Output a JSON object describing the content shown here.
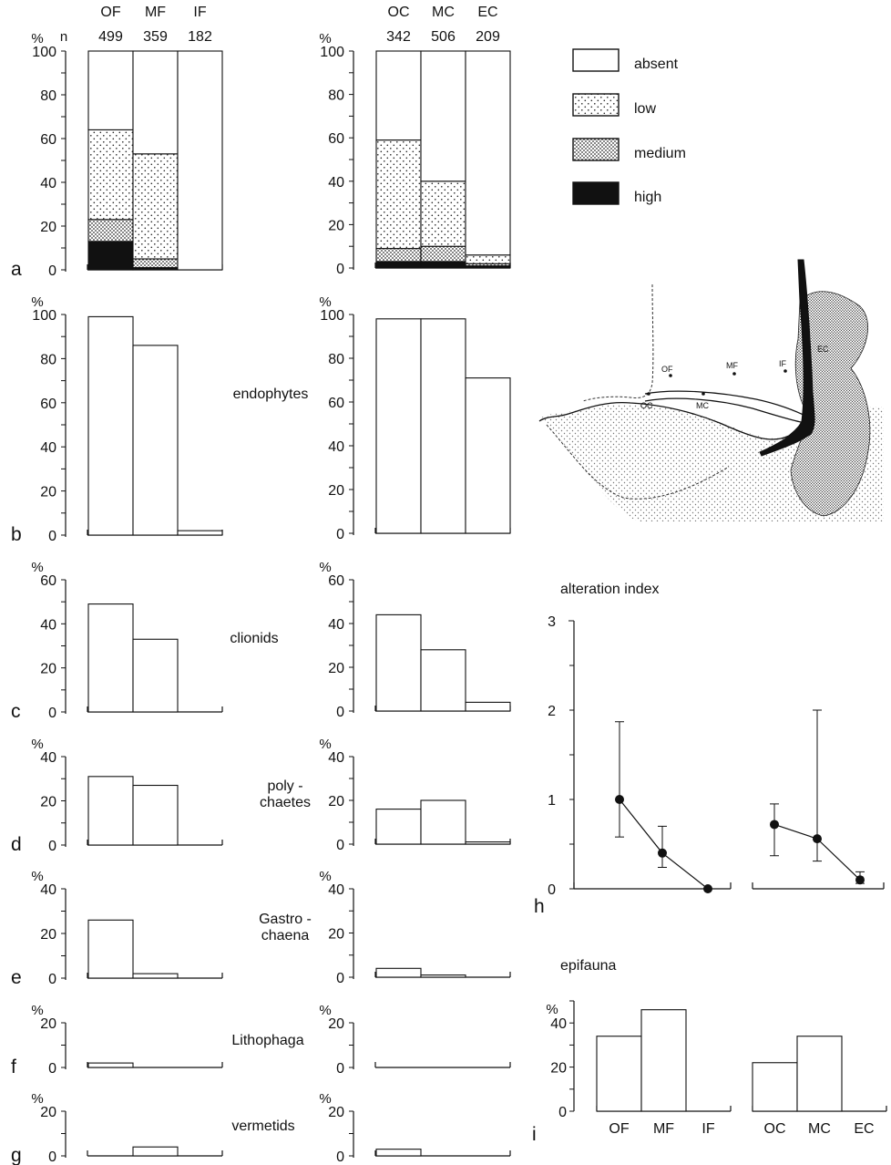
{
  "legend": {
    "items": [
      {
        "key": "absent",
        "label": "absent"
      },
      {
        "key": "low",
        "label": "low"
      },
      {
        "key": "medium",
        "label": "medium"
      },
      {
        "key": "high",
        "label": "high"
      }
    ]
  },
  "chart_data": [
    {
      "id": "a",
      "type": "bar",
      "stacked": true,
      "panel_label": "a",
      "ylabel": "%",
      "n_label": "n",
      "categories": [
        "OF",
        "MF",
        "IF"
      ],
      "n": [
        "499",
        "359",
        "182"
      ],
      "series": [
        {
          "name": "high",
          "values": [
            13,
            1,
            0
          ]
        },
        {
          "name": "medium",
          "values": [
            10,
            4,
            0
          ]
        },
        {
          "name": "low",
          "values": [
            41,
            48,
            0
          ]
        },
        {
          "name": "absent",
          "values": [
            36,
            47,
            100
          ]
        }
      ],
      "ylim": [
        0,
        100
      ],
      "yticks": [
        0,
        20,
        40,
        60,
        80,
        100
      ]
    },
    {
      "id": "a2",
      "type": "bar",
      "stacked": true,
      "ylabel": "%",
      "categories": [
        "OC",
        "MC",
        "EC"
      ],
      "n": [
        "342",
        "506",
        "209"
      ],
      "series": [
        {
          "name": "high",
          "values": [
            3,
            3,
            1
          ]
        },
        {
          "name": "medium",
          "values": [
            6,
            7,
            1
          ]
        },
        {
          "name": "low",
          "values": [
            50,
            30,
            4
          ]
        },
        {
          "name": "absent",
          "values": [
            41,
            60,
            94
          ]
        }
      ],
      "ylim": [
        0,
        100
      ],
      "yticks": [
        0,
        20,
        40,
        60,
        80,
        100
      ]
    },
    {
      "id": "b",
      "type": "bar",
      "panel_label": "b",
      "ylabel": "%",
      "title": "endophytes",
      "categories": [
        "OF",
        "MF",
        "IF"
      ],
      "values": [
        99,
        86,
        2
      ],
      "ylim": [
        0,
        100
      ],
      "yticks": [
        0,
        20,
        40,
        60,
        80,
        100
      ]
    },
    {
      "id": "b2",
      "type": "bar",
      "ylabel": "%",
      "categories": [
        "OC",
        "MC",
        "EC"
      ],
      "values": [
        98,
        98,
        71
      ],
      "ylim": [
        0,
        100
      ],
      "yticks": [
        0,
        20,
        40,
        60,
        80,
        100
      ]
    },
    {
      "id": "c",
      "type": "bar",
      "panel_label": "c",
      "ylabel": "%",
      "title": "clionids",
      "categories": [
        "OF",
        "MF",
        "IF"
      ],
      "values": [
        49,
        33,
        0
      ],
      "ylim": [
        0,
        60
      ],
      "yticks": [
        0,
        20,
        40,
        60
      ]
    },
    {
      "id": "c2",
      "type": "bar",
      "ylabel": "%",
      "categories": [
        "OC",
        "MC",
        "EC"
      ],
      "values": [
        44,
        28,
        4
      ],
      "ylim": [
        0,
        60
      ],
      "yticks": [
        0,
        20,
        40,
        60
      ]
    },
    {
      "id": "d",
      "type": "bar",
      "panel_label": "d",
      "ylabel": "%",
      "title": "poly -\nchaetes",
      "categories": [
        "OF",
        "MF",
        "IF"
      ],
      "values": [
        31,
        27,
        0
      ],
      "ylim": [
        0,
        40
      ],
      "yticks": [
        0,
        20,
        40
      ]
    },
    {
      "id": "d2",
      "type": "bar",
      "ylabel": "%",
      "categories": [
        "OC",
        "MC",
        "EC"
      ],
      "values": [
        16,
        20,
        1
      ],
      "ylim": [
        0,
        40
      ],
      "yticks": [
        0,
        20,
        40
      ]
    },
    {
      "id": "e",
      "type": "bar",
      "panel_label": "e",
      "ylabel": "%",
      "title": "Gastro -\nchaena",
      "categories": [
        "OF",
        "MF",
        "IF"
      ],
      "values": [
        26,
        2,
        0
      ],
      "ylim": [
        0,
        40
      ],
      "yticks": [
        0,
        20,
        40
      ]
    },
    {
      "id": "e2",
      "type": "bar",
      "ylabel": "%",
      "categories": [
        "OC",
        "MC",
        "EC"
      ],
      "values": [
        4,
        1,
        0
      ],
      "ylim": [
        0,
        40
      ],
      "yticks": [
        0,
        20,
        40
      ]
    },
    {
      "id": "f",
      "type": "bar",
      "panel_label": "f",
      "ylabel": "%",
      "title": "Lithophaga",
      "categories": [
        "OF",
        "MF",
        "IF"
      ],
      "values": [
        2,
        0,
        0
      ],
      "ylim": [
        0,
        20
      ],
      "yticks": [
        0,
        20
      ]
    },
    {
      "id": "f2",
      "type": "bar",
      "ylabel": "%",
      "categories": [
        "OC",
        "MC",
        "EC"
      ],
      "values": [
        0,
        0,
        0
      ],
      "ylim": [
        0,
        20
      ],
      "yticks": [
        0,
        20
      ]
    },
    {
      "id": "g",
      "type": "bar",
      "panel_label": "g",
      "ylabel": "%",
      "title": "vermetids",
      "categories": [
        "OF",
        "MF",
        "IF"
      ],
      "values": [
        0,
        4,
        0
      ],
      "ylim": [
        0,
        20
      ],
      "yticks": [
        0,
        20
      ]
    },
    {
      "id": "g2",
      "type": "bar",
      "ylabel": "%",
      "categories": [
        "OC",
        "MC",
        "EC"
      ],
      "values": [
        3,
        0,
        0
      ],
      "ylim": [
        0,
        20
      ],
      "yticks": [
        0,
        20
      ]
    },
    {
      "id": "h",
      "type": "line",
      "panel_label": "h",
      "title": "alteration index",
      "ylim": [
        0,
        3
      ],
      "yticks": [
        0,
        1,
        2,
        3
      ],
      "groups": [
        {
          "categories": [
            "OF",
            "MF",
            "IF"
          ],
          "values": [
            1.0,
            0.4,
            0.0
          ],
          "err_low": [
            0.58,
            0.24,
            0.0
          ],
          "err_high": [
            1.87,
            0.7,
            0.0
          ]
        },
        {
          "categories": [
            "OC",
            "MC",
            "EC"
          ],
          "values": [
            0.72,
            0.56,
            0.1
          ],
          "err_low": [
            0.37,
            0.31,
            0.06
          ],
          "err_high": [
            0.95,
            2.0,
            0.19
          ]
        }
      ]
    },
    {
      "id": "i",
      "type": "bar",
      "panel_label": "i",
      "title": "epifauna",
      "ylabel": "%",
      "ylim": [
        0,
        50
      ],
      "yticks": [
        0,
        20,
        40
      ],
      "groups": [
        {
          "categories": [
            "OF",
            "MF",
            "IF"
          ],
          "values": [
            34,
            46,
            0
          ]
        },
        {
          "categories": [
            "OC",
            "MC",
            "EC"
          ],
          "values": [
            22,
            34,
            0
          ]
        }
      ]
    }
  ],
  "map": {
    "stations": [
      "OF",
      "MF",
      "IF",
      "OC",
      "MC",
      "EC"
    ]
  }
}
